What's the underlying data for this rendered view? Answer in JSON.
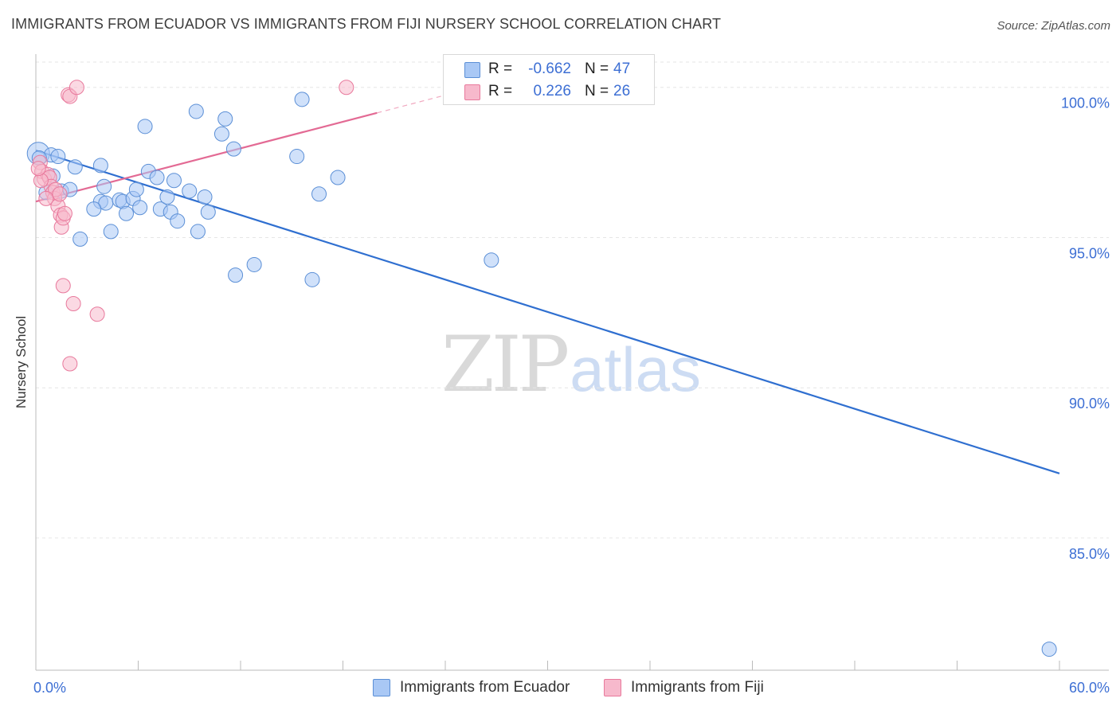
{
  "header": {
    "title": "IMMIGRANTS FROM ECUADOR VS IMMIGRANTS FROM FIJI NURSERY SCHOOL CORRELATION CHART",
    "source": "Source: ZipAtlas.com"
  },
  "watermark": {
    "zip": "ZIP",
    "atlas": "atlas"
  },
  "legend": {
    "rows": [
      {
        "r_label": "R =",
        "r_value": "-0.662",
        "n_label": "N =",
        "n_value": "47",
        "color": "#a9c8f5"
      },
      {
        "r_label": "R =",
        "r_value": "0.226",
        "n_label": "N =",
        "n_value": "26",
        "color": "#f7b9cc"
      }
    ]
  },
  "bottom_legend": [
    {
      "label": "Immigrants from Ecuador",
      "color": "#a9c8f5"
    },
    {
      "label": "Immigrants from Fiji",
      "color": "#f7b9cc"
    }
  ],
  "chart_data": {
    "type": "scatter",
    "title": "IMMIGRANTS FROM ECUADOR VS IMMIGRANTS FROM FIJI NURSERY SCHOOL CORRELATION CHART",
    "xlabel": "",
    "ylabel": "Nursery School",
    "xlim": [
      0,
      60
    ],
    "ylim": [
      80.6,
      101.0
    ],
    "x_tick_labels": [
      "0.0%",
      "60.0%"
    ],
    "y_ticks": [
      100,
      95,
      90,
      85
    ],
    "y_tick_labels": [
      "100.0%",
      "95.0%",
      "90.0%",
      "85.0%"
    ],
    "grid": true,
    "legend_position": "top-center",
    "series": [
      {
        "name": "Immigrants from Ecuador",
        "color": "#a9c8f5",
        "stroke": "#5b8fd6",
        "trend_color": "#2f6fd0",
        "trend": {
          "x": [
            0,
            60
          ],
          "y": [
            97.9,
            87.15
          ]
        },
        "points": [
          [
            0.15,
            97.8
          ],
          [
            0.9,
            97.75
          ],
          [
            1.0,
            97.05
          ],
          [
            1.5,
            96.55
          ],
          [
            2.0,
            96.6
          ],
          [
            2.3,
            97.35
          ],
          [
            2.6,
            94.95
          ],
          [
            3.8,
            96.2
          ],
          [
            4.1,
            96.15
          ],
          [
            3.4,
            95.95
          ],
          [
            3.8,
            97.4
          ],
          [
            4.0,
            96.7
          ],
          [
            4.4,
            95.2
          ],
          [
            4.9,
            96.25
          ],
          [
            5.1,
            96.2
          ],
          [
            5.3,
            95.8
          ],
          [
            5.7,
            96.3
          ],
          [
            5.9,
            96.6
          ],
          [
            6.1,
            96.0
          ],
          [
            6.4,
            98.7
          ],
          [
            6.6,
            97.2
          ],
          [
            7.1,
            97.0
          ],
          [
            7.3,
            95.95
          ],
          [
            7.7,
            96.35
          ],
          [
            7.9,
            95.85
          ],
          [
            8.1,
            96.9
          ],
          [
            8.3,
            95.55
          ],
          [
            9.0,
            96.55
          ],
          [
            9.5,
            95.2
          ],
          [
            9.9,
            96.35
          ],
          [
            10.1,
            95.85
          ],
          [
            10.9,
            98.45
          ],
          [
            11.1,
            98.95
          ],
          [
            9.4,
            99.2
          ],
          [
            11.6,
            97.95
          ],
          [
            11.7,
            93.75
          ],
          [
            12.8,
            94.1
          ],
          [
            15.3,
            97.7
          ],
          [
            15.6,
            99.6
          ],
          [
            16.2,
            93.6
          ],
          [
            16.6,
            96.45
          ],
          [
            17.7,
            97.0
          ],
          [
            26.7,
            94.25
          ],
          [
            59.4,
            81.3
          ],
          [
            0.2,
            97.65
          ],
          [
            0.6,
            96.5
          ],
          [
            1.3,
            97.7
          ]
        ]
      },
      {
        "name": "Immigrants from Fiji",
        "color": "#f7b9cc",
        "stroke": "#e8799c",
        "trend_color": "#e36a94",
        "trend": {
          "x": [
            0,
            20.0
          ],
          "y": [
            96.2,
            99.15
          ]
        },
        "points": [
          [
            1.9,
            99.75
          ],
          [
            2.0,
            99.7
          ],
          [
            2.4,
            100.0
          ],
          [
            18.2,
            100.0
          ],
          [
            0.25,
            97.5
          ],
          [
            0.35,
            97.2
          ],
          [
            0.5,
            96.95
          ],
          [
            0.7,
            97.1
          ],
          [
            0.8,
            97.0
          ],
          [
            0.9,
            96.7
          ],
          [
            1.0,
            96.5
          ],
          [
            1.1,
            96.3
          ],
          [
            1.15,
            96.6
          ],
          [
            1.3,
            96.05
          ],
          [
            1.45,
            95.75
          ],
          [
            1.5,
            95.35
          ],
          [
            1.6,
            95.65
          ],
          [
            1.7,
            95.8
          ],
          [
            1.6,
            93.4
          ],
          [
            2.2,
            92.8
          ],
          [
            3.6,
            92.45
          ],
          [
            2.0,
            90.8
          ],
          [
            0.6,
            96.3
          ],
          [
            0.3,
            96.9
          ],
          [
            1.4,
            96.45
          ],
          [
            0.15,
            97.3
          ]
        ]
      }
    ]
  }
}
